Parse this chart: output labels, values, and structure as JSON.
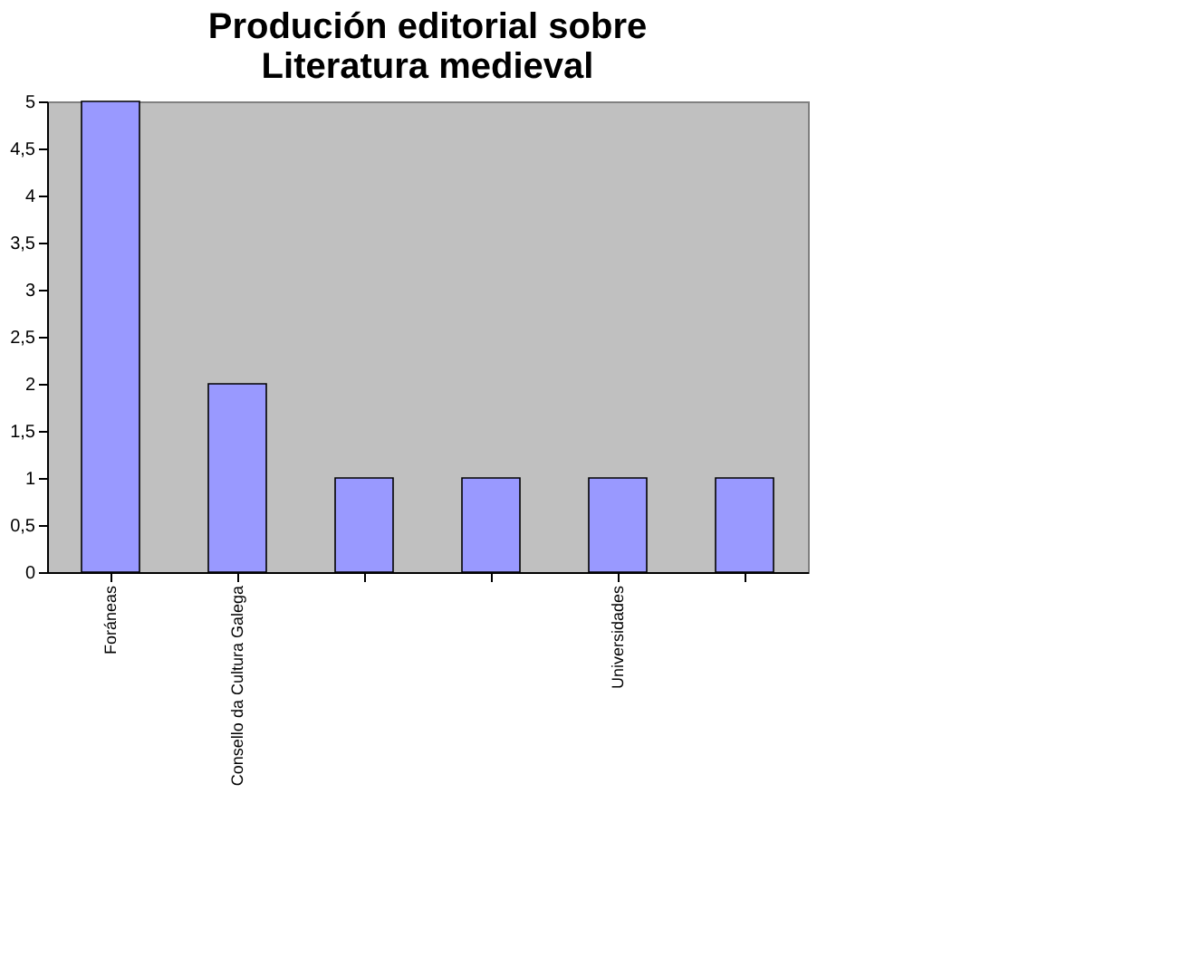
{
  "chart_data": {
    "type": "bar",
    "title": "Produción editorial sobre\nLiteratura medieval",
    "categories": [
      "Foráneas",
      "Consello da Cultura Galega",
      null,
      null,
      "Universidades",
      null
    ],
    "values": [
      5,
      2,
      1,
      1,
      1,
      1
    ],
    "color": "#9999ff",
    "ylim": [
      0,
      5
    ],
    "yticks": [
      0,
      {
        "value": 0.5,
        "label": "0,5"
      },
      1,
      {
        "value": 1.5,
        "label": "1,5"
      },
      2,
      {
        "value": 2.5,
        "label": "2,5"
      },
      3,
      {
        "value": 3.5,
        "label": "3,5"
      },
      4,
      {
        "value": 4.5,
        "label": "4,5"
      },
      5
    ],
    "grid": false
  }
}
